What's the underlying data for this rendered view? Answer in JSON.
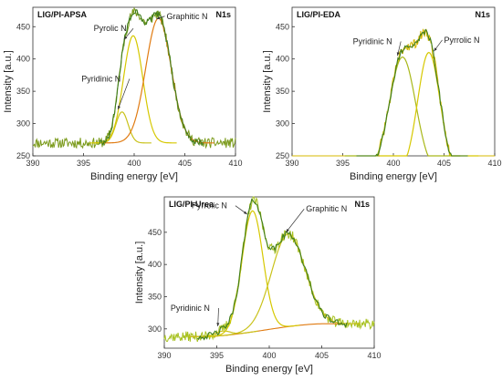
{
  "chart_data": [
    {
      "type": "line",
      "panel_label": "LIG/PI-APSA",
      "region": "N1s",
      "xlabel": "Binding energy [eV]",
      "ylabel": "Intensity [a.u.]",
      "xlim": [
        390,
        410
      ],
      "ylim": [
        250,
        480
      ],
      "xticks": [
        390,
        395,
        400,
        405,
        410
      ],
      "yticks": [
        250,
        300,
        350,
        400,
        450
      ],
      "baseline": 270,
      "noise_seed": 11,
      "noise_amp": 5,
      "measured_color": "#7a9a1a",
      "envelope_color": "#3f7d1c",
      "components": [
        {
          "name": "Pyridinic N",
          "center": 398.8,
          "height": 318,
          "sigma": 0.6,
          "color": "#c9c21a"
        },
        {
          "name": "Pyrolic N",
          "center": 399.9,
          "height": 436,
          "sigma": 0.95,
          "color": "#d6c800"
        },
        {
          "name": "Graphitic N",
          "center": 402.4,
          "height": 463,
          "sigma": 1.25,
          "color": "#e07b12"
        }
      ],
      "annotations": [
        {
          "text": "Pyrolic N",
          "tx": 396.0,
          "ty": 443,
          "ax": 399.0,
          "ay": 430
        },
        {
          "text": "Graphitic N",
          "tx": 403.2,
          "ty": 462,
          "ax": 402.2,
          "ay": 462
        },
        {
          "text": "Pyridinic N",
          "tx": 394.8,
          "ty": 365,
          "ax": 398.4,
          "ay": 322
        }
      ]
    },
    {
      "type": "line",
      "panel_label": "LIG/PI-EDA",
      "region": "N1s",
      "xlabel": "Binding energy [eV]",
      "ylabel": "Intensity [a.u.]",
      "xlim": [
        390,
        410
      ],
      "ylim": [
        250,
        480
      ],
      "xticks": [
        390,
        395,
        400,
        405,
        410
      ],
      "yticks": [
        250,
        300,
        350,
        400,
        450
      ],
      "baseline": 222,
      "noise_seed": 23,
      "noise_amp": 5,
      "measured_color": "#d7b800",
      "envelope_color": "#3f7d1c",
      "components": [
        {
          "name": "Pyridinic N",
          "center": 400.9,
          "height": 403,
          "sigma": 1.3,
          "color": "#a9b81a"
        },
        {
          "name": "Pyrrolic N",
          "center": 403.5,
          "height": 410,
          "sigma": 1.1,
          "color": "#d6c800"
        }
      ],
      "annotations": [
        {
          "text": "Pyridinic N",
          "tx": 396.0,
          "ty": 423,
          "ax": 400.4,
          "ay": 405
        },
        {
          "text": "Pyrrolic N",
          "tx": 405.0,
          "ty": 425,
          "ax": 404.0,
          "ay": 412
        }
      ]
    },
    {
      "type": "line",
      "panel_label": "LIG/PI-Urea",
      "region": "N1s",
      "xlabel": "Binding energy [eV]",
      "ylabel": "Intensity [a.u.]",
      "xlim": [
        390,
        410
      ],
      "ylim": [
        270,
        505
      ],
      "xticks": [
        390,
        395,
        400,
        405,
        410
      ],
      "yticks": [
        300,
        350,
        400,
        450
      ],
      "baseline": 288,
      "noise_seed": 37,
      "noise_amp": 5,
      "measured_color": "#a7c11f",
      "envelope_color": "#3f7d1c",
      "components": [
        {
          "name": "Pyridinic N",
          "center": 395.6,
          "height": 295,
          "sigma": 0.7,
          "color": "#c9c21a"
        },
        {
          "name": "Pyrrolic N",
          "center": 398.4,
          "height": 476,
          "sigma": 1.0,
          "color": "#d6c800"
        },
        {
          "name": "Graphitic N",
          "center": 401.8,
          "height": 432,
          "sigma": 1.6,
          "color": "#c9c21a"
        }
      ],
      "background": {
        "start": 393.5,
        "end": 405.5,
        "low": 288,
        "high": 308,
        "color": "#e07b12"
      },
      "annotations": [
        {
          "text": "Pyrrolic N",
          "tx": 392.6,
          "ty": 487,
          "ax": 397.9,
          "ay": 478
        },
        {
          "text": "Graphitic N",
          "tx": 403.5,
          "ty": 482,
          "ax": 401.6,
          "ay": 450
        },
        {
          "text": "Pyridinic N",
          "tx": 390.6,
          "ty": 328,
          "ax": 395.1,
          "ay": 304
        }
      ]
    }
  ]
}
